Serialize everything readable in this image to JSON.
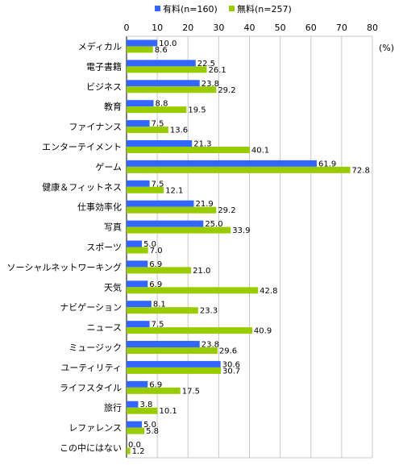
{
  "chart_data": {
    "type": "bar",
    "orientation": "horizontal",
    "unit": "(%)",
    "xlim": [
      0,
      80
    ],
    "ticks": [
      "0",
      "10",
      "20",
      "30",
      "40",
      "50",
      "60",
      "70",
      "80"
    ],
    "grid": true,
    "legend_position": "top",
    "categories": [
      "メディカル",
      "電子書籍",
      "ビジネス",
      "教育",
      "ファイナンス",
      "エンターテイメント",
      "ゲーム",
      "健康＆フィットネス",
      "仕事効率化",
      "写真",
      "スポーツ",
      "ソーシャルネットワーキング",
      "天気",
      "ナビゲーション",
      "ニュース",
      "ミュージック",
      "ユーティリティ",
      "ライフスタイル",
      "旅行",
      "レファレンス",
      "この中にはない"
    ],
    "series": [
      {
        "name": "有料(n=160)",
        "color": "#3366ff",
        "values": [
          10.0,
          22.5,
          23.8,
          8.8,
          7.5,
          21.3,
          61.9,
          7.5,
          21.9,
          25.0,
          5.0,
          6.9,
          6.9,
          8.1,
          7.5,
          23.8,
          30.6,
          6.9,
          3.8,
          5.0,
          0.0
        ],
        "labels": [
          "10.0",
          "22.5",
          "23.8",
          "8.8",
          "7.5",
          "21.3",
          "61.9",
          "7.5",
          "21.9",
          "25.0",
          "5.0",
          "6.9",
          "6.9",
          "8.1",
          "7.5",
          "23.8",
          "30.6",
          "6.9",
          "3.8",
          "5.0",
          "0.0"
        ]
      },
      {
        "name": "無料(n=257)",
        "color": "#99cc00",
        "values": [
          8.6,
          26.1,
          29.2,
          19.5,
          13.6,
          40.1,
          72.8,
          12.1,
          29.2,
          33.9,
          7.0,
          21.0,
          42.8,
          23.3,
          40.9,
          29.6,
          30.7,
          17.5,
          10.1,
          5.8,
          1.2
        ],
        "labels": [
          "8.6",
          "26.1",
          "29.2",
          "19.5",
          "13.6",
          "40.1",
          "72.8",
          "12.1",
          "29.2",
          "33.9",
          "7.0",
          "21.0",
          "42.8",
          "23.3",
          "40.9",
          "29.6",
          "30.7",
          "17.5",
          "10.1",
          "5.8",
          "1.2"
        ]
      }
    ]
  }
}
